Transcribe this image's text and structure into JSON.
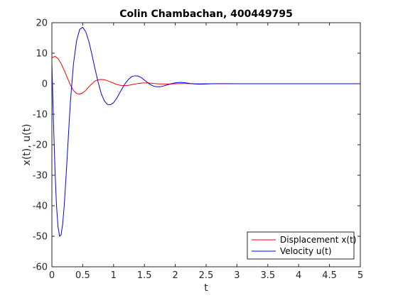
{
  "chart_data": {
    "type": "line",
    "title": "Colin Chambachan, 400449795",
    "xlabel": "t",
    "ylabel": "x(t), u(t)",
    "xlim": [
      0,
      5
    ],
    "ylim": [
      -60,
      20
    ],
    "xticks": [
      0,
      0.5,
      1,
      1.5,
      2,
      2.5,
      3,
      3.5,
      4,
      4.5,
      5
    ],
    "xtick_labels": [
      "0",
      "0.5",
      "1",
      "1.5",
      "2",
      "2.5",
      "3",
      "3.5",
      "4",
      "4.5",
      "5"
    ],
    "yticks": [
      20,
      10,
      0,
      -10,
      -20,
      -30,
      -40,
      -50,
      -60
    ],
    "ytick_labels": [
      "20",
      "10",
      "0",
      "-10",
      "-20",
      "-30",
      "-40",
      "-50",
      "-60"
    ],
    "grid": false,
    "legend_position": "bottom-right",
    "series": [
      {
        "name": "Displacement x(t)",
        "color": "#ff0000",
        "x": [
          0,
          0.05,
          0.1,
          0.15,
          0.2,
          0.25,
          0.3,
          0.35,
          0.4,
          0.45,
          0.5,
          0.55,
          0.6,
          0.65,
          0.7,
          0.75,
          0.8,
          0.85,
          0.9,
          0.95,
          1.0,
          1.05,
          1.1,
          1.15,
          1.2,
          1.25,
          1.3,
          1.35,
          1.4,
          1.45,
          1.5,
          1.55,
          1.6,
          1.65,
          1.7,
          1.75,
          1.8,
          1.85,
          1.9,
          1.95,
          2.0,
          2.05,
          2.1,
          2.15,
          2.2,
          2.3,
          2.4,
          2.5,
          2.6,
          2.8,
          3.0,
          3.5,
          4.0,
          4.5,
          5.0
        ],
        "y": [
          8.5,
          9.0,
          8.2,
          6.6,
          4.4,
          2.0,
          -0.4,
          -2.2,
          -3.2,
          -3.4,
          -3.0,
          -2.2,
          -1.0,
          0.0,
          0.9,
          1.3,
          1.4,
          1.3,
          1.0,
          0.6,
          0.2,
          -0.2,
          -0.5,
          -0.6,
          -0.6,
          -0.5,
          -0.3,
          -0.1,
          0.1,
          0.2,
          0.25,
          0.25,
          0.2,
          0.1,
          0.0,
          -0.05,
          -0.1,
          -0.1,
          -0.1,
          -0.05,
          0.0,
          0.03,
          0.05,
          0.05,
          0.04,
          0.0,
          -0.02,
          -0.01,
          0.0,
          0.0,
          0.0,
          0.0,
          0.0,
          0.0,
          0.0
        ]
      },
      {
        "name": "Velocity u(t)",
        "color": "#0000ff",
        "x": [
          0,
          0.025,
          0.05,
          0.075,
          0.1,
          0.125,
          0.15,
          0.175,
          0.2,
          0.225,
          0.25,
          0.275,
          0.3,
          0.35,
          0.4,
          0.45,
          0.5,
          0.55,
          0.6,
          0.65,
          0.7,
          0.75,
          0.8,
          0.85,
          0.9,
          0.95,
          1.0,
          1.05,
          1.1,
          1.15,
          1.2,
          1.25,
          1.3,
          1.35,
          1.4,
          1.45,
          1.5,
          1.55,
          1.6,
          1.65,
          1.7,
          1.75,
          1.8,
          1.85,
          1.9,
          1.95,
          2.0,
          2.05,
          2.1,
          2.15,
          2.2,
          2.25,
          2.3,
          2.4,
          2.5,
          2.6,
          2.7,
          2.8,
          3.0,
          3.2,
          3.5,
          4.0,
          4.5,
          5.0
        ],
        "y": [
          7.0,
          -12.0,
          -28.0,
          -40.0,
          -47.0,
          -50.0,
          -49.5,
          -46.0,
          -40.0,
          -32.0,
          -23.5,
          -14.5,
          -6.0,
          6.5,
          14.0,
          17.8,
          18.5,
          17.0,
          13.8,
          9.5,
          4.8,
          0.5,
          -3.2,
          -5.6,
          -6.8,
          -6.9,
          -6.2,
          -4.8,
          -3.0,
          -1.2,
          0.4,
          1.6,
          2.4,
          2.6,
          2.5,
          2.0,
          1.2,
          0.4,
          -0.3,
          -0.8,
          -1.0,
          -1.0,
          -0.8,
          -0.5,
          -0.2,
          0.1,
          0.3,
          0.4,
          0.4,
          0.35,
          0.2,
          0.05,
          -0.05,
          -0.15,
          -0.1,
          0.0,
          0.04,
          0.03,
          0.0,
          0.0,
          0.0,
          0.0,
          0.0,
          0.0
        ]
      }
    ]
  }
}
